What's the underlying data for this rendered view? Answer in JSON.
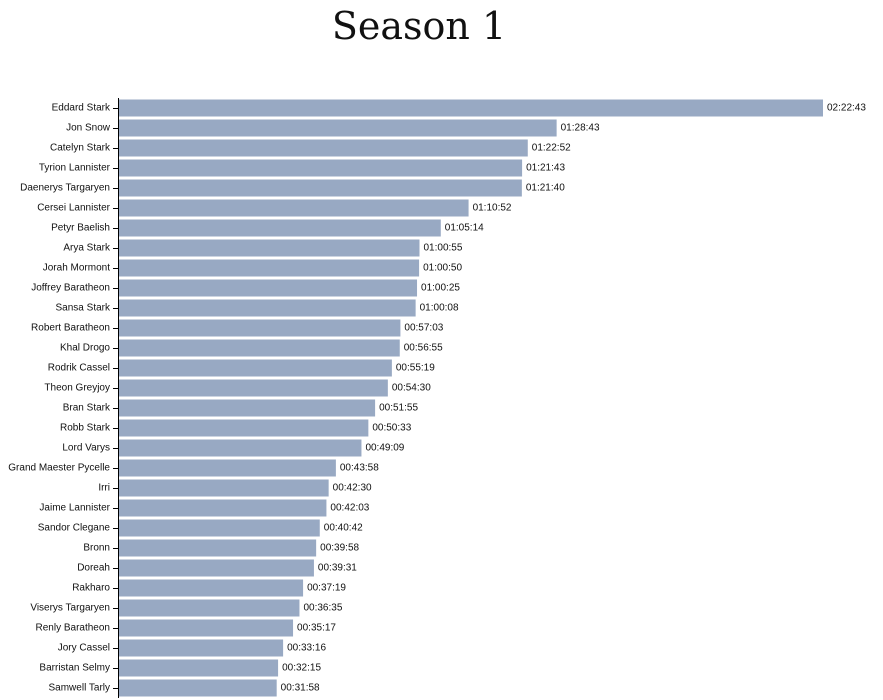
{
  "title": "Season 1",
  "colors": {
    "bar": "#98a9c3"
  },
  "chart_data": {
    "type": "bar",
    "orientation": "horizontal",
    "title": "Season 1",
    "xlabel": "",
    "ylabel": "",
    "unit": "hh:mm:ss",
    "categories": [
      "Eddard Stark",
      "Jon Snow",
      "Catelyn Stark",
      "Tyrion Lannister",
      "Daenerys Targaryen",
      "Cersei Lannister",
      "Petyr Baelish",
      "Arya Stark",
      "Jorah Mormont",
      "Joffrey Baratheon",
      "Sansa Stark",
      "Robert Baratheon",
      "Khal Drogo",
      "Rodrik Cassel",
      "Theon Greyjoy",
      "Bran Stark",
      "Robb Stark",
      "Lord Varys",
      "Grand Maester Pycelle",
      "Irri",
      "Jaime Lannister",
      "Sandor Clegane",
      "Bronn",
      "Doreah",
      "Rakharo",
      "Viserys Targaryen",
      "Renly Baratheon",
      "Jory Cassel",
      "Barristan Selmy",
      "Samwell Tarly"
    ],
    "labels": [
      "02:22:43",
      "01:28:43",
      "01:22:52",
      "01:21:43",
      "01:21:40",
      "01:10:52",
      "01:05:14",
      "01:00:55",
      "01:00:50",
      "01:00:25",
      "01:00:08",
      "00:57:03",
      "00:56:55",
      "00:55:19",
      "00:54:30",
      "00:51:55",
      "00:50:33",
      "00:49:09",
      "00:43:58",
      "00:42:30",
      "00:42:03",
      "00:40:42",
      "00:39:58",
      "00:39:31",
      "00:37:19",
      "00:36:35",
      "00:35:17",
      "00:33:16",
      "00:32:15",
      "00:31:58"
    ],
    "values_seconds": [
      8563,
      5323,
      4972,
      4903,
      4900,
      4252,
      3914,
      3655,
      3650,
      3625,
      3608,
      3423,
      3415,
      3319,
      3270,
      3115,
      3033,
      2949,
      2638,
      2550,
      2523,
      2442,
      2398,
      2371,
      2239,
      2195,
      2117,
      1996,
      1935,
      1918
    ],
    "grid": false,
    "legend": "none"
  }
}
